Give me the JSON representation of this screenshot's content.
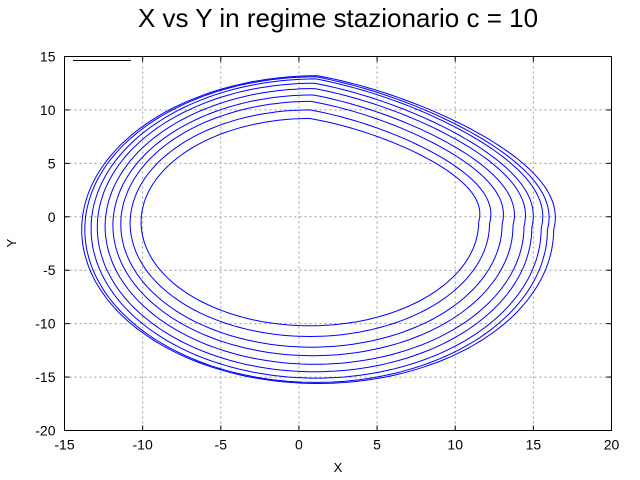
{
  "chart_data": {
    "type": "line",
    "title": "X vs Y in regime stazionario c = 10",
    "xlabel": "X",
    "ylabel": "Y",
    "xlim": [
      -15,
      20
    ],
    "ylim": [
      -20,
      15
    ],
    "xticks": [
      -15,
      -10,
      -5,
      0,
      5,
      10,
      15,
      20
    ],
    "yticks": [
      -20,
      -15,
      -10,
      -5,
      0,
      5,
      10,
      15
    ],
    "xtick_labels": [
      "-15",
      "-10",
      "-5",
      "0",
      "5",
      "10",
      "15",
      "20"
    ],
    "ytick_labels": [
      "-20",
      "-15",
      "-10",
      "-5",
      "0",
      "5",
      "10",
      "15"
    ],
    "grid": true,
    "legend": {
      "placement": "top-left",
      "entries": [
        ""
      ]
    },
    "series": [
      {
        "color": "#0000ff",
        "loops": [
          {
            "cx": 0.7,
            "cy": -0.5,
            "rx": 10.8,
            "ry": 9.7
          },
          {
            "cx": 0.7,
            "cy": -0.6,
            "rx": 11.5,
            "ry": 10.6
          },
          {
            "cx": 0.8,
            "cy": -0.7,
            "rx": 12.2,
            "ry": 11.5
          },
          {
            "cx": 0.9,
            "cy": -0.8,
            "rx": 12.8,
            "ry": 12.2
          },
          {
            "cx": 1.0,
            "cy": -0.9,
            "rx": 13.4,
            "ry": 12.9
          },
          {
            "cx": 1.0,
            "cy": -1.0,
            "rx": 13.9,
            "ry": 13.5
          },
          {
            "cx": 1.1,
            "cy": -1.1,
            "rx": 14.4,
            "ry": 14.0
          },
          {
            "cx": 1.1,
            "cy": -1.2,
            "rx": 14.8,
            "ry": 14.3
          },
          {
            "cx": 1.2,
            "cy": -1.2,
            "rx": 15.1,
            "ry": 14.4
          }
        ]
      }
    ]
  }
}
